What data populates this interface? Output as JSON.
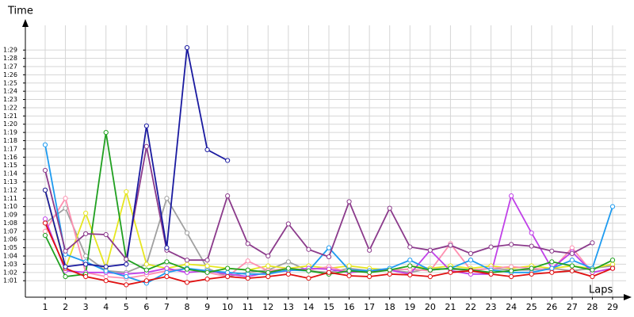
{
  "chart_data": {
    "type": "line",
    "y_label": "Time",
    "x_label": "Laps",
    "categories": [
      1,
      2,
      3,
      4,
      5,
      6,
      7,
      8,
      9,
      10,
      11,
      12,
      13,
      14,
      15,
      16,
      17,
      18,
      19,
      20,
      21,
      22,
      23,
      24,
      25,
      26,
      27,
      28,
      29
    ],
    "ylim": [
      59,
      92
    ],
    "yticks": [
      {
        "value": 61,
        "label": "1:01"
      },
      {
        "value": 62,
        "label": "1:02"
      },
      {
        "value": 63,
        "label": "1:03"
      },
      {
        "value": 64,
        "label": "1:04"
      },
      {
        "value": 65,
        "label": "1:05"
      },
      {
        "value": 66,
        "label": "1:06"
      },
      {
        "value": 67,
        "label": "1:07"
      },
      {
        "value": 68,
        "label": "1:08"
      },
      {
        "value": 69,
        "label": "1:09"
      },
      {
        "value": 70,
        "label": "1:10"
      },
      {
        "value": 71,
        "label": "1:11"
      },
      {
        "value": 72,
        "label": "1:12"
      },
      {
        "value": 73,
        "label": "1:13"
      },
      {
        "value": 74,
        "label": "1:14"
      },
      {
        "value": 75,
        "label": "1:15"
      },
      {
        "value": 76,
        "label": "1:16"
      },
      {
        "value": 77,
        "label": "1:17"
      },
      {
        "value": 78,
        "label": "1:18"
      },
      {
        "value": 79,
        "label": "1:19"
      },
      {
        "value": 80,
        "label": "1:20"
      },
      {
        "value": 81,
        "label": "1:21"
      },
      {
        "value": 82,
        "label": "1:22"
      },
      {
        "value": 83,
        "label": "1:23"
      },
      {
        "value": 84,
        "label": "1:24"
      },
      {
        "value": 85,
        "label": "1:25"
      },
      {
        "value": 86,
        "label": "1:26"
      },
      {
        "value": 87,
        "label": "1:27"
      },
      {
        "value": 88,
        "label": "1:28"
      },
      {
        "value": 89,
        "label": "1:29"
      }
    ],
    "grid": true,
    "series": [
      {
        "color": "#a0a0a0",
        "values": [
          68,
          69.8,
          64,
          62.2,
          62,
          63,
          71,
          66.8,
          62.5,
          61.5,
          62,
          62.3,
          63.3,
          62.2,
          62,
          62.5,
          62.2,
          62.3,
          62,
          62.5,
          62.4,
          62.2,
          62.5,
          62.3,
          62.3,
          62.5,
          62.2,
          62.5,
          62.8
        ]
      },
      {
        "color": "#e6e620",
        "values": [
          72,
          62.5,
          69.2,
          62.5,
          71.8,
          63,
          62.5,
          63,
          62.8,
          62.5,
          62.3,
          62.8,
          62.5,
          62.8,
          62.5,
          62.8,
          62.5,
          62.3,
          62.8,
          62.5,
          62.8,
          62.5,
          62.8,
          62.5,
          62.8,
          62.5,
          62.8,
          62.5,
          63
        ]
      },
      {
        "color": "#ff90b0",
        "values": [
          67,
          71,
          62,
          61.5,
          61.3,
          61.7,
          62.2,
          62.5,
          62,
          61.5,
          63.4,
          62.2,
          62.5,
          62.3,
          62.7,
          62,
          62.2,
          62.3,
          62.4,
          62.2,
          65.5,
          62.3,
          62.5,
          62.7,
          62.5,
          62.3,
          65,
          62,
          62.5
        ]
      },
      {
        "color": "#c040e8",
        "values": [
          68.5,
          62.2,
          62,
          62,
          61.8,
          62,
          62.5,
          62,
          62.2,
          61.8,
          61.5,
          62,
          62.2,
          62.5,
          62.4,
          62,
          62.2,
          62.3,
          61.8,
          64.7,
          62.2,
          61.8,
          61.8,
          71.3,
          66.8,
          62.5,
          64.5,
          62,
          62.5
        ]
      },
      {
        "color": "#1e9bf0",
        "values": [
          77.5,
          64.2,
          63.3,
          62.2,
          61.5,
          60.7,
          62,
          62.5,
          62.2,
          62,
          61.8,
          61.8,
          62.3,
          62.2,
          65,
          62.3,
          62.2,
          62.5,
          63.5,
          62.3,
          62.5,
          63.5,
          62.3,
          62,
          62,
          62.5,
          63.5,
          62.5,
          70
        ]
      },
      {
        "color": "#20a020",
        "values": [
          66.5,
          61.5,
          61.8,
          79,
          63.6,
          62.3,
          63.3,
          62.4,
          62,
          62.5,
          62.3,
          62,
          62.5,
          62.2,
          61.8,
          62.2,
          62,
          62.3,
          62.8,
          62.3,
          62.5,
          62.3,
          62,
          62.2,
          62.5,
          63.3,
          62.8,
          62.3,
          63.5
        ]
      },
      {
        "color": "#e01010",
        "values": [
          68,
          62.5,
          61.5,
          61,
          60.5,
          61,
          61.5,
          60.8,
          61.2,
          61.5,
          61.3,
          61.5,
          61.8,
          61.3,
          62,
          61.6,
          61.5,
          61.8,
          61.7,
          61.5,
          62,
          62.2,
          61.8,
          61.5,
          61.8,
          62,
          62.2,
          61.5,
          62.5
        ]
      },
      {
        "color": "#8b3a8b",
        "values": [
          74.4,
          64.6,
          66.7,
          66.6,
          63.6,
          77.3,
          64.7,
          63.5,
          63.5,
          71.3,
          65.5,
          64,
          67.9,
          64.8,
          63.9,
          70.6,
          64.7,
          69.8,
          65.1,
          64.7,
          65.3,
          64.3,
          65.1,
          65.4,
          65.2,
          64.6,
          64.3,
          65.6,
          null
        ]
      },
      {
        "color": "#1a1aa0",
        "values": [
          72,
          62.7,
          63,
          62.7,
          63,
          79.8,
          65,
          89.3,
          76.9,
          75.6,
          null,
          null,
          null,
          null,
          null,
          null,
          null,
          null,
          null,
          null,
          null,
          null,
          null,
          null,
          null,
          null,
          null,
          null,
          null
        ]
      }
    ]
  }
}
